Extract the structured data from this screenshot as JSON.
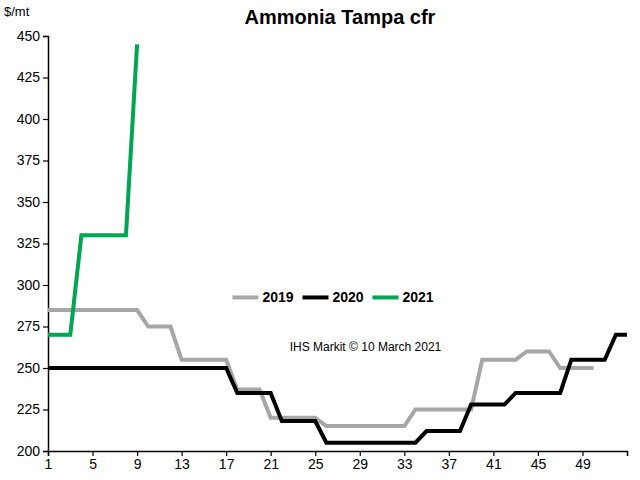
{
  "chart_data": {
    "type": "line",
    "title": "Ammonia Tampa cfr",
    "ylabel": "$/mt",
    "annotation": "IHS Markit © 10 March 2021",
    "x": [
      1,
      2,
      3,
      4,
      5,
      6,
      7,
      8,
      9,
      10,
      11,
      12,
      13,
      14,
      15,
      16,
      17,
      18,
      19,
      20,
      21,
      22,
      23,
      24,
      25,
      26,
      27,
      28,
      29,
      30,
      31,
      32,
      33,
      34,
      35,
      36,
      37,
      38,
      39,
      40,
      41,
      42,
      43,
      44,
      45,
      46,
      47,
      48,
      49,
      50,
      51,
      52,
      53
    ],
    "xlim": [
      1,
      53
    ],
    "xticks": [
      1,
      5,
      9,
      13,
      17,
      21,
      25,
      29,
      33,
      37,
      41,
      45,
      49
    ],
    "ylim": [
      200,
      450
    ],
    "yticks": [
      200,
      225,
      250,
      275,
      300,
      325,
      350,
      375,
      400,
      425,
      450
    ],
    "grid": false,
    "legend": "center",
    "series": [
      {
        "name": "2019",
        "color": "#a6a6a6",
        "values": [
          285,
          285,
          285,
          285,
          285,
          285,
          285,
          285,
          285,
          275,
          275,
          275,
          255,
          255,
          255,
          255,
          255,
          237,
          237,
          237,
          220,
          220,
          220,
          220,
          220,
          215,
          215,
          215,
          215,
          215,
          215,
          215,
          215,
          225,
          225,
          225,
          225,
          225,
          225,
          255,
          255,
          255,
          255,
          260,
          260,
          260,
          250,
          250,
          250,
          250,
          null,
          null,
          null
        ]
      },
      {
        "name": "2020",
        "color": "#000000",
        "values": [
          250,
          250,
          250,
          250,
          250,
          250,
          250,
          250,
          250,
          250,
          250,
          250,
          250,
          250,
          250,
          250,
          250,
          235,
          235,
          235,
          235,
          218,
          218,
          218,
          218,
          205,
          205,
          205,
          205,
          205,
          205,
          205,
          205,
          205,
          212,
          212,
          212,
          212,
          228,
          228,
          228,
          228,
          235,
          235,
          235,
          235,
          235,
          255,
          255,
          255,
          255,
          270,
          270
        ]
      },
      {
        "name": "2021",
        "color": "#00a651",
        "values": [
          270,
          270,
          270,
          330,
          330,
          330,
          330,
          330,
          445,
          null,
          null,
          null,
          null,
          null,
          null,
          null,
          null,
          null,
          null,
          null,
          null,
          null,
          null,
          null,
          null,
          null,
          null,
          null,
          null,
          null,
          null,
          null,
          null,
          null,
          null,
          null,
          null,
          null,
          null,
          null,
          null,
          null,
          null,
          null,
          null,
          null,
          null,
          null,
          null,
          null,
          null,
          null,
          null
        ]
      }
    ]
  }
}
